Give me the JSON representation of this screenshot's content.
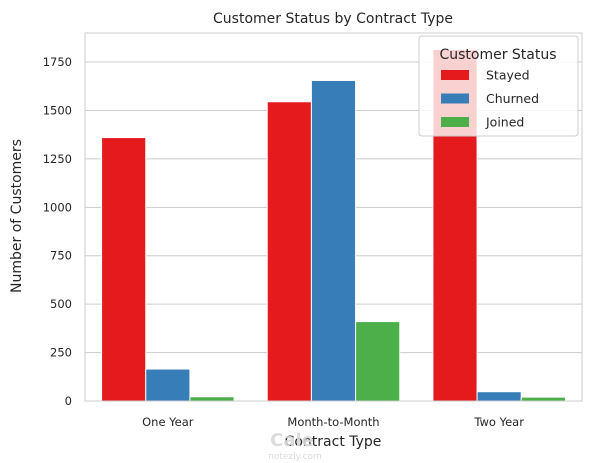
{
  "chart_data": {
    "type": "bar",
    "title": "Customer Status by Contract Type",
    "xlabel": "Contract Type",
    "ylabel": "Number of Customers",
    "categories": [
      "One Year",
      "Month-to-Month",
      "Two Year"
    ],
    "series": [
      {
        "name": "Stayed",
        "color": "#e41a1c",
        "values": [
          1360,
          1545,
          1815
        ]
      },
      {
        "name": "Churned",
        "color": "#377eb8",
        "values": [
          165,
          1655,
          48
        ]
      },
      {
        "name": "Joined",
        "color": "#4daf4a",
        "values": [
          22,
          410,
          20
        ]
      }
    ],
    "ylim": [
      0,
      1900
    ],
    "yticks": [
      0,
      250,
      500,
      750,
      1000,
      1250,
      1500,
      1750
    ],
    "grid": true,
    "legend": {
      "title": "Customer Status",
      "placement": "top-right"
    }
  },
  "watermark": {
    "line1": "Cale",
    "line2": "notezly.com"
  }
}
